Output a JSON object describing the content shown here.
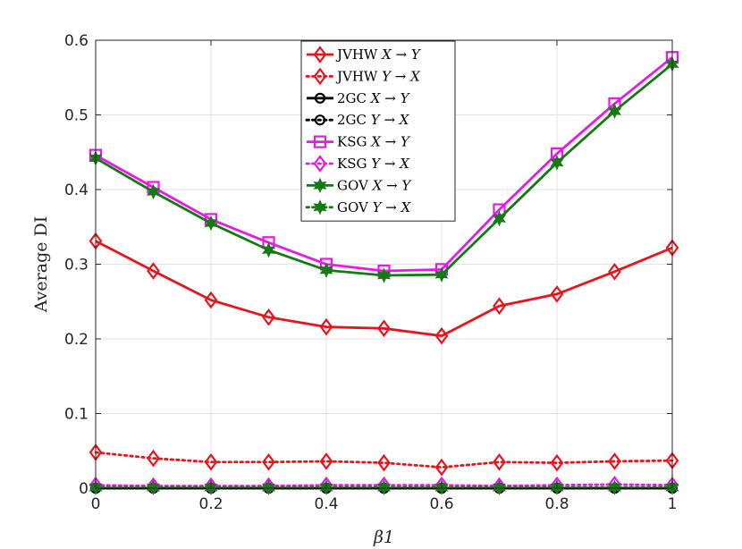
{
  "chart_data": {
    "type": "line",
    "xlabel": "β1",
    "ylabel": "Average DI",
    "xlim": [
      0,
      1
    ],
    "ylim": [
      0,
      0.6
    ],
    "xticks": [
      "0",
      "0.2",
      "0.4",
      "0.6",
      "0.8",
      "1"
    ],
    "yticks": [
      "0",
      "0.1",
      "0.2",
      "0.3",
      "0.4",
      "0.5",
      "0.6"
    ],
    "grid": true,
    "legend_position": "top-center",
    "x": [
      0,
      0.1,
      0.2,
      0.3,
      0.4,
      0.5,
      0.6,
      0.7,
      0.8,
      0.9,
      1.0
    ],
    "series": [
      {
        "name": "JVHW X → Y",
        "name_prefix": "JVHW",
        "name_formula": "X → Y",
        "color": "#e8141c",
        "line": "solid",
        "marker": "diamond",
        "values": [
          0.331,
          0.291,
          0.252,
          0.229,
          0.216,
          0.214,
          0.204,
          0.244,
          0.26,
          0.29,
          0.322
        ]
      },
      {
        "name": "JVHW Y → X",
        "name_prefix": "JVHW",
        "name_formula": "Y → X",
        "color": "#e8141c",
        "line": "dotted",
        "marker": "diamond",
        "values": [
          0.048,
          0.04,
          0.035,
          0.035,
          0.036,
          0.034,
          0.028,
          0.035,
          0.034,
          0.036,
          0.037
        ]
      },
      {
        "name": "2GC X → Y",
        "name_prefix": "2GC",
        "name_formula": "X → Y",
        "color": "#000000",
        "line": "solid",
        "marker": "circle",
        "values": [
          0.0,
          0.0,
          0.0,
          0.0,
          0.0,
          0.0,
          0.0,
          0.0,
          0.0,
          0.0,
          0.0
        ]
      },
      {
        "name": "2GC Y → X",
        "name_prefix": "2GC",
        "name_formula": "Y → X",
        "color": "#000000",
        "line": "dotted",
        "marker": "circle",
        "values": [
          0.0,
          0.0,
          0.0,
          0.0,
          0.0,
          0.0,
          0.0,
          0.0,
          0.0,
          0.0,
          0.0
        ]
      },
      {
        "name": "KSG X → Y",
        "name_prefix": "KSG",
        "name_formula": "X → Y",
        "color": "#e619e6",
        "line": "solid",
        "marker": "square",
        "values": [
          0.446,
          0.403,
          0.36,
          0.329,
          0.3,
          0.291,
          0.293,
          0.373,
          0.448,
          0.515,
          0.577
        ]
      },
      {
        "name": "KSG Y → X",
        "name_prefix": "KSG",
        "name_formula": "Y → X",
        "color": "#e619e6",
        "line": "dotted",
        "marker": "diamond",
        "values": [
          0.004,
          0.003,
          0.003,
          0.003,
          0.004,
          0.004,
          0.004,
          0.003,
          0.004,
          0.005,
          0.004
        ]
      },
      {
        "name": "GOV X → Y",
        "name_prefix": "GOV",
        "name_formula": "X → Y",
        "color": "#157a15",
        "line": "solid",
        "marker": "hexagram",
        "values": [
          0.442,
          0.397,
          0.355,
          0.319,
          0.292,
          0.285,
          0.286,
          0.361,
          0.436,
          0.505,
          0.568
        ]
      },
      {
        "name": "GOV Y → X",
        "name_prefix": "GOV",
        "name_formula": "Y → X",
        "color": "#157a15",
        "line": "dotted",
        "marker": "hexagram",
        "values": [
          0.001,
          0.001,
          0.001,
          0.001,
          0.001,
          0.001,
          0.001,
          0.001,
          0.001,
          0.001,
          0.001
        ]
      }
    ]
  }
}
